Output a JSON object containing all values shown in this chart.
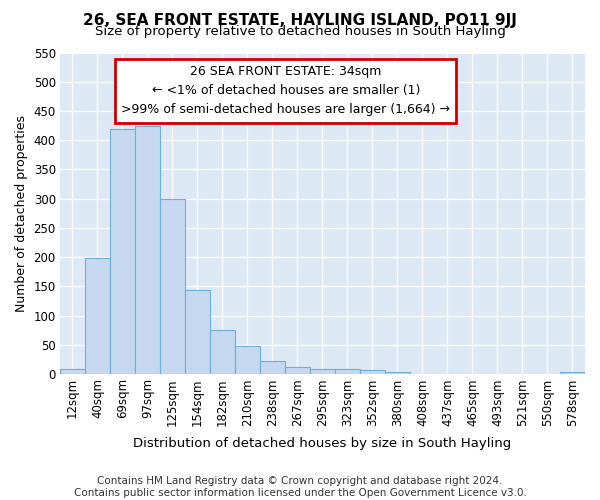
{
  "title": "26, SEA FRONT ESTATE, HAYLING ISLAND, PO11 9JJ",
  "subtitle": "Size of property relative to detached houses in South Hayling",
  "xlabel": "Distribution of detached houses by size in South Hayling",
  "ylabel": "Number of detached properties",
  "footer_line1": "Contains HM Land Registry data © Crown copyright and database right 2024.",
  "footer_line2": "Contains public sector information licensed under the Open Government Licence v3.0.",
  "categories": [
    "12sqm",
    "40sqm",
    "69sqm",
    "97sqm",
    "125sqm",
    "154sqm",
    "182sqm",
    "210sqm",
    "238sqm",
    "267sqm",
    "295sqm",
    "323sqm",
    "352sqm",
    "380sqm",
    "408sqm",
    "437sqm",
    "465sqm",
    "493sqm",
    "521sqm",
    "550sqm",
    "578sqm"
  ],
  "values": [
    9,
    199,
    420,
    424,
    300,
    143,
    76,
    48,
    23,
    12,
    9,
    8,
    7,
    4,
    0,
    0,
    0,
    0,
    0,
    0,
    4
  ],
  "bar_color": "#c5d8f0",
  "bar_edge_color": "#6baed6",
  "plot_bg_color": "#dde8f5",
  "fig_bg_color": "#ffffff",
  "annotation_line1": "26 SEA FRONT ESTATE: 34sqm",
  "annotation_line2": "← <1% of detached houses are smaller (1)",
  "annotation_line3": ">99% of semi-detached houses are larger (1,664) →",
  "ann_box_bg": "#ffffff",
  "ann_box_edge": "#cc0000",
  "ylim_max": 550,
  "yticks": [
    0,
    50,
    100,
    150,
    200,
    250,
    300,
    350,
    400,
    450,
    500,
    550
  ],
  "grid_color": "#ffffff",
  "title_fontsize": 11,
  "subtitle_fontsize": 9.5,
  "tick_fontsize": 8.5,
  "ylabel_fontsize": 9,
  "xlabel_fontsize": 9.5,
  "footer_fontsize": 7.5,
  "ann_fontsize": 9
}
